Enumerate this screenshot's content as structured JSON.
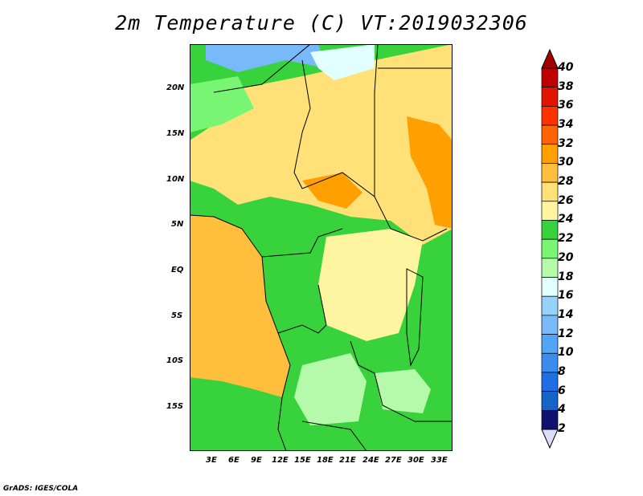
{
  "title": "2m Temperature (C) VT:2019032306",
  "credit": "GrADS: IGES/COLA",
  "lon_labels": [
    "3E",
    "6E",
    "9E",
    "12E",
    "15E",
    "18E",
    "21E",
    "24E",
    "27E",
    "30E",
    "33E"
  ],
  "lat_labels": [
    "20N",
    "15N",
    "10N",
    "5N",
    "EQ",
    "5S",
    "10S",
    "15S"
  ],
  "colorbar": {
    "levels": [
      "2",
      "4",
      "6",
      "8",
      "10",
      "12",
      "14",
      "16",
      "18",
      "20",
      "22",
      "24",
      "26",
      "28",
      "30",
      "32",
      "34",
      "36",
      "38",
      "40"
    ],
    "colors": [
      "#dcdcff",
      "#10106e",
      "#1464c8",
      "#1e6ee6",
      "#3c8cf0",
      "#50a5f5",
      "#78b9fa",
      "#96d2fa",
      "#e1ffff",
      "#b4faaa",
      "#78f573",
      "#37d23c",
      "#fff5a0",
      "#ffe178",
      "#ffbe3c",
      "#ffa000",
      "#ff6400",
      "#ff3200",
      "#e11400",
      "#c00000",
      "#a50000"
    ]
  },
  "colors": {
    "ocean": "#ffbe3c",
    "land": "#37d23c",
    "basin": "#fff5a0",
    "north": "#ffe178",
    "hot": "#ffa000",
    "cool": "#78f573",
    "cold": "#78b9fa"
  }
}
